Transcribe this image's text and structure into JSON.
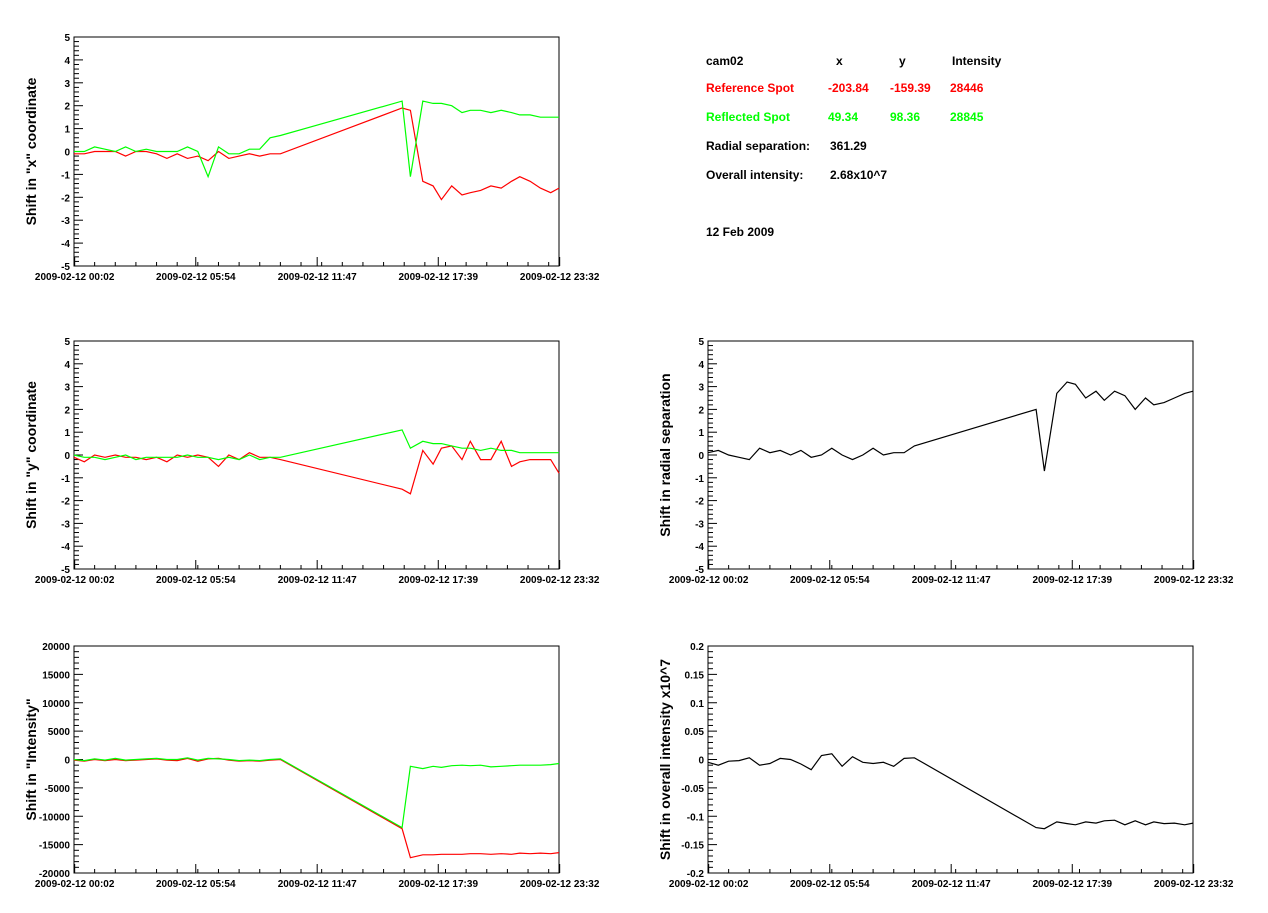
{
  "colors": {
    "reference": "#ff0000",
    "reflected": "#00ff00",
    "neutral": "#000000"
  },
  "info": {
    "header": {
      "cam": "cam02",
      "x": "x",
      "y": "y",
      "intensity": "Intensity"
    },
    "reference": {
      "label": "Reference Spot",
      "x": "-203.84",
      "y": "-159.39",
      "intensity": "28446"
    },
    "reflected": {
      "label": "Reflected Spot",
      "x": "49.34",
      "y": "98.36",
      "intensity": "28845"
    },
    "radial": {
      "label": "Radial separation:",
      "value": "361.29"
    },
    "overall": {
      "label": "Overall intensity:",
      "value": "2.68x10^7"
    },
    "date": "12 Feb 2009"
  },
  "chart_data": [
    {
      "id": "shift-x",
      "type": "line",
      "ylabel": "Shift in \"x\" coordinate",
      "xlim": [
        0.0,
        23.5
      ],
      "ylim": [
        -5,
        5
      ],
      "yticks": [
        -5,
        -4,
        -3,
        -2,
        -1,
        0,
        1,
        2,
        3,
        4,
        5
      ],
      "xticks": [
        0.033,
        5.9,
        11.783,
        17.65,
        23.533
      ],
      "xtick_labels": [
        "2009-02-12 00:02",
        "2009-02-12 05:54",
        "2009-02-12 11:47",
        "2009-02-12 17:39",
        "2009-02-12 23:32"
      ],
      "series": [
        {
          "color": "reference",
          "x": [
            0,
            0.5,
            1,
            1.5,
            2,
            2.5,
            3,
            3.5,
            4,
            4.5,
            5,
            5.5,
            6,
            6.5,
            7,
            7.5,
            8,
            8.5,
            9,
            9.5,
            10,
            15.9,
            16.3,
            16.9,
            17.4,
            17.8,
            18.3,
            18.8,
            19.2,
            19.7,
            20.2,
            20.7,
            21.2,
            21.6,
            22.1,
            22.6,
            23.1,
            23.5
          ],
          "y": [
            -0.1,
            -0.1,
            0,
            0,
            0,
            -0.2,
            0,
            0,
            -0.1,
            -0.3,
            -0.1,
            -0.3,
            -0.2,
            -0.4,
            0,
            -0.3,
            -0.2,
            -0.1,
            -0.2,
            -0.1,
            -0.1,
            1.9,
            1.8,
            -1.3,
            -1.5,
            -2.1,
            -1.5,
            -1.9,
            -1.8,
            -1.7,
            -1.5,
            -1.6,
            -1.3,
            -1.1,
            -1.3,
            -1.6,
            -1.8,
            -1.6
          ]
        },
        {
          "color": "reflected",
          "x": [
            0,
            0.5,
            1,
            1.5,
            2,
            2.5,
            3,
            3.5,
            4,
            4.5,
            5,
            5.5,
            6,
            6.5,
            7,
            7.5,
            8,
            8.5,
            9,
            9.5,
            10,
            15.9,
            16.3,
            16.9,
            17.4,
            17.8,
            18.3,
            18.8,
            19.2,
            19.7,
            20.2,
            20.7,
            21.2,
            21.6,
            22.1,
            22.6,
            23.1,
            23.5
          ],
          "y": [
            0,
            0,
            0.2,
            0.1,
            0,
            0.2,
            0,
            0.1,
            0,
            0,
            0,
            0.2,
            0,
            -1.1,
            0.2,
            -0.1,
            -0.1,
            0.1,
            0.1,
            0.6,
            0.7,
            2.2,
            -1.1,
            2.2,
            2.1,
            2.1,
            2.0,
            1.7,
            1.8,
            1.8,
            1.7,
            1.8,
            1.7,
            1.6,
            1.6,
            1.5,
            1.5,
            1.5
          ]
        }
      ]
    },
    {
      "id": "shift-y",
      "type": "line",
      "ylabel": "Shift in \"y\" coordinate",
      "xlim": [
        0.0,
        23.5
      ],
      "ylim": [
        -5,
        5
      ],
      "yticks": [
        -5,
        -4,
        -3,
        -2,
        -1,
        0,
        1,
        2,
        3,
        4,
        5
      ],
      "xticks": [
        0.033,
        5.9,
        11.783,
        17.65,
        23.533
      ],
      "xtick_labels": [
        "2009-02-12 00:02",
        "2009-02-12 05:54",
        "2009-02-12 11:47",
        "2009-02-12 17:39",
        "2009-02-12 23:32"
      ],
      "series": [
        {
          "color": "reference",
          "x": [
            0,
            0.5,
            1,
            1.5,
            2,
            2.5,
            3,
            3.5,
            4,
            4.5,
            5,
            5.5,
            6,
            6.5,
            7,
            7.5,
            8,
            8.5,
            9,
            9.5,
            10,
            15.9,
            16.3,
            16.9,
            17.4,
            17.8,
            18.3,
            18.8,
            19.2,
            19.7,
            20.2,
            20.7,
            21.2,
            21.6,
            22.1,
            22.6,
            23.1,
            23.5
          ],
          "y": [
            -0.1,
            -0.3,
            0,
            -0.1,
            0,
            -0.1,
            -0.1,
            -0.2,
            -0.1,
            -0.3,
            0,
            -0.1,
            0,
            -0.1,
            -0.5,
            0,
            -0.2,
            0.1,
            -0.1,
            -0.1,
            -0.2,
            -1.5,
            -1.7,
            0.2,
            -0.4,
            0.3,
            0.4,
            -0.2,
            0.6,
            -0.2,
            -0.2,
            0.6,
            -0.5,
            -0.3,
            -0.2,
            -0.2,
            -0.2,
            -0.8
          ]
        },
        {
          "color": "reflected",
          "x": [
            0,
            0.5,
            1,
            1.5,
            2,
            2.5,
            3,
            3.5,
            4,
            4.5,
            5,
            5.5,
            6,
            6.5,
            7,
            7.5,
            8,
            8.5,
            9,
            9.5,
            10,
            15.9,
            16.3,
            16.9,
            17.4,
            17.8,
            18.3,
            18.8,
            19.2,
            19.7,
            20.2,
            20.7,
            21.2,
            21.6,
            22.1,
            22.6,
            23.1,
            23.5
          ],
          "y": [
            0,
            -0.1,
            -0.1,
            -0.2,
            -0.1,
            0,
            -0.2,
            -0.1,
            -0.1,
            -0.1,
            -0.1,
            0,
            -0.1,
            -0.1,
            -0.2,
            -0.1,
            -0.2,
            0,
            -0.2,
            -0.1,
            -0.1,
            1.1,
            0.3,
            0.6,
            0.5,
            0.5,
            0.4,
            0.3,
            0.3,
            0.2,
            0.3,
            0.2,
            0.2,
            0.1,
            0.1,
            0.1,
            0.1,
            0.1
          ]
        }
      ]
    },
    {
      "id": "shift-radial",
      "type": "line",
      "ylabel": "Shift in radial separation",
      "xlim": [
        0.0,
        23.5
      ],
      "ylim": [
        -5,
        5
      ],
      "yticks": [
        -5,
        -4,
        -3,
        -2,
        -1,
        0,
        1,
        2,
        3,
        4,
        5
      ],
      "xticks": [
        0.033,
        5.9,
        11.783,
        17.65,
        23.533
      ],
      "xtick_labels": [
        "2009-02-12 00:02",
        "2009-02-12 05:54",
        "2009-02-12 11:47",
        "2009-02-12 17:39",
        "2009-02-12 23:32"
      ],
      "series": [
        {
          "color": "neutral",
          "x": [
            0,
            0.5,
            1,
            1.5,
            2,
            2.5,
            3,
            3.5,
            4,
            4.5,
            5,
            5.5,
            6,
            6.5,
            7,
            7.5,
            8,
            8.5,
            9,
            9.5,
            10,
            15.9,
            16.3,
            16.9,
            17.4,
            17.8,
            18.3,
            18.8,
            19.2,
            19.7,
            20.2,
            20.7,
            21.2,
            21.6,
            22.1,
            22.6,
            23.1,
            23.5
          ],
          "y": [
            0.1,
            0.2,
            0,
            -0.1,
            -0.2,
            0.3,
            0.1,
            0.2,
            0,
            0.2,
            -0.1,
            0,
            0.3,
            0,
            -0.2,
            0,
            0.3,
            0,
            0.1,
            0.1,
            0.4,
            2.0,
            -0.7,
            2.7,
            3.2,
            3.1,
            2.5,
            2.8,
            2.4,
            2.8,
            2.6,
            2.0,
            2.5,
            2.2,
            2.3,
            2.5,
            2.7,
            2.8
          ]
        }
      ]
    },
    {
      "id": "shift-intensity",
      "type": "line",
      "ylabel": "Shift in \"Intensity\"",
      "xlim": [
        0.0,
        23.5
      ],
      "ylim": [
        -20000,
        20000
      ],
      "yticks": [
        -20000,
        -15000,
        -10000,
        -5000,
        0,
        5000,
        10000,
        15000,
        20000
      ],
      "xticks": [
        0.033,
        5.9,
        11.783,
        17.65,
        23.533
      ],
      "xtick_labels": [
        "2009-02-12 00:02",
        "2009-02-12 05:54",
        "2009-02-12 11:47",
        "2009-02-12 17:39",
        "2009-02-12 23:32"
      ],
      "series": [
        {
          "color": "reference",
          "x": [
            0,
            0.5,
            1,
            1.5,
            2,
            2.5,
            3,
            3.5,
            4,
            4.5,
            5,
            5.5,
            6,
            6.5,
            7,
            7.5,
            8,
            8.5,
            9,
            9.5,
            10,
            15.9,
            16.3,
            16.9,
            17.4,
            17.8,
            18.3,
            18.8,
            19.2,
            19.7,
            20.2,
            20.7,
            21.2,
            21.6,
            22.1,
            22.6,
            23.1,
            23.5
          ],
          "y": [
            -100,
            -300,
            0,
            -200,
            0,
            -200,
            -100,
            0,
            100,
            -100,
            -200,
            200,
            -300,
            100,
            200,
            -100,
            -300,
            -200,
            -300,
            -100,
            0,
            -12200,
            -17300,
            -16800,
            -16800,
            -16700,
            -16700,
            -16700,
            -16600,
            -16600,
            -16700,
            -16600,
            -16700,
            -16500,
            -16600,
            -16500,
            -16600,
            -16400
          ]
        },
        {
          "color": "reflected",
          "x": [
            0,
            0.5,
            1,
            1.5,
            2,
            2.5,
            3,
            3.5,
            4,
            4.5,
            5,
            5.5,
            6,
            6.5,
            7,
            7.5,
            8,
            8.5,
            9,
            9.5,
            10,
            15.9,
            16.3,
            16.9,
            17.4,
            17.8,
            18.3,
            18.8,
            19.2,
            19.7,
            20.2,
            20.7,
            21.2,
            21.6,
            22.1,
            22.6,
            23.1,
            23.5
          ],
          "y": [
            0,
            -200,
            100,
            -100,
            200,
            -100,
            0,
            100,
            200,
            0,
            0,
            300,
            -100,
            200,
            100,
            0,
            -200,
            -100,
            -200,
            0,
            100,
            -12000,
            -1200,
            -1600,
            -1200,
            -1400,
            -1100,
            -1000,
            -1100,
            -1000,
            -1300,
            -1200,
            -1100,
            -1000,
            -1000,
            -1000,
            -900,
            -700
          ]
        }
      ]
    },
    {
      "id": "shift-overall-intensity",
      "type": "line",
      "ylabel": "Shift in overall intensity x10^7",
      "xlim": [
        0.0,
        23.5
      ],
      "ylim": [
        -0.2,
        0.2
      ],
      "yticks": [
        -0.2,
        -0.15,
        -0.1,
        -0.05,
        0,
        0.05,
        0.1,
        0.15,
        0.2
      ],
      "xticks": [
        0.033,
        5.9,
        11.783,
        17.65,
        23.533
      ],
      "xtick_labels": [
        "2009-02-12 00:02",
        "2009-02-12 05:54",
        "2009-02-12 11:47",
        "2009-02-12 17:39",
        "2009-02-12 23:32"
      ],
      "series": [
        {
          "color": "neutral",
          "x": [
            0,
            0.5,
            1,
            1.5,
            2,
            2.5,
            3,
            3.5,
            4,
            4.5,
            5,
            5.5,
            6,
            6.5,
            7,
            7.5,
            8,
            8.5,
            9,
            9.5,
            10,
            15.9,
            16.3,
            16.9,
            17.4,
            17.8,
            18.3,
            18.8,
            19.2,
            19.7,
            20.2,
            20.7,
            21.2,
            21.6,
            22.1,
            22.6,
            23.1,
            23.5
          ],
          "y": [
            -0.005,
            -0.01,
            -0.003,
            -0.002,
            0.003,
            -0.01,
            -0.007,
            0.002,
            0,
            -0.008,
            -0.018,
            0.007,
            0.01,
            -0.012,
            0.005,
            -0.005,
            -0.007,
            -0.005,
            -0.012,
            0.002,
            0.003,
            -0.12,
            -0.122,
            -0.11,
            -0.113,
            -0.115,
            -0.11,
            -0.112,
            -0.108,
            -0.107,
            -0.115,
            -0.108,
            -0.115,
            -0.11,
            -0.113,
            -0.112,
            -0.115,
            -0.112
          ]
        }
      ]
    }
  ]
}
